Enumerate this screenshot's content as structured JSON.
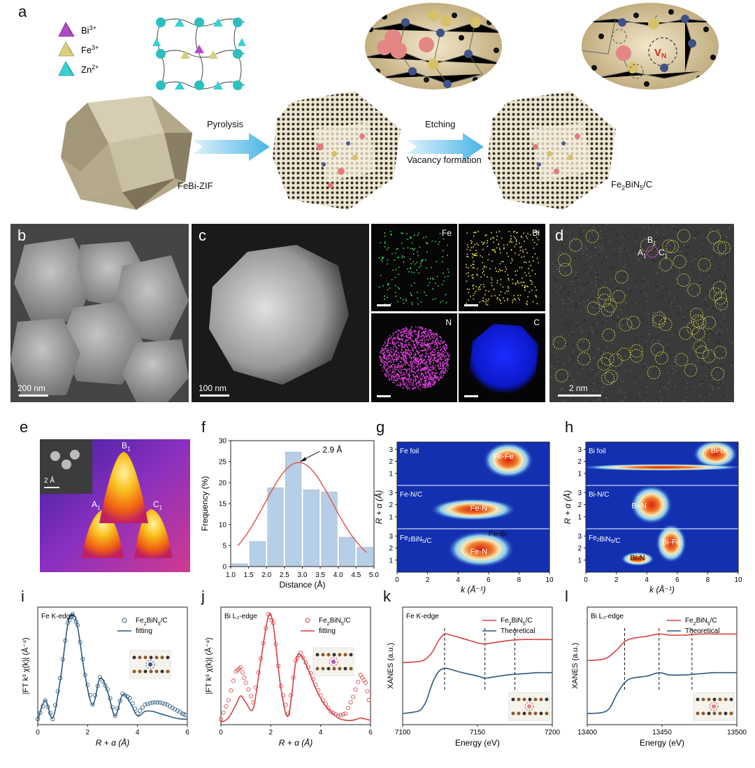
{
  "panel_labels": [
    "a",
    "b",
    "c",
    "d",
    "e",
    "f",
    "g",
    "h",
    "i",
    "j",
    "k",
    "l"
  ],
  "panel_a": {
    "legend": [
      {
        "ion": "Bi",
        "charge": "3+",
        "color": "#b24bc8"
      },
      {
        "ion": "Fe",
        "charge": "3+",
        "color": "#cfc573"
      },
      {
        "ion": "Zn",
        "charge": "2+",
        "color": "#2ec6c8"
      }
    ],
    "step1": "Pyrolysis",
    "step2": "Etching",
    "step2_sub": "Vacancy formation",
    "label_precursor": "FeBi-ZIF",
    "label_product_base": "Fe",
    "label_product_sub1": "2",
    "label_product_mid": "BiN",
    "label_product_sub2": "5",
    "label_product_end": "/C",
    "vacancy_main": "V",
    "vacancy_sub": "N"
  },
  "panel_b": {
    "scale": "200 nm"
  },
  "panel_c": {
    "scale": "100 nm",
    "maps": [
      "Fe",
      "Bi",
      "N",
      "C"
    ]
  },
  "panel_d": {
    "scale": "2 nm",
    "site_B": "B",
    "site_A": "A",
    "site_C": "C",
    "site_sub": "1"
  },
  "panel_e": {
    "inset_scale": "2 Å",
    "peak_B": "B",
    "peak_A": "A",
    "peak_C": "C",
    "peak_sub": "1"
  },
  "colors": {
    "fe_line": "#2b5a7e",
    "bi_line": "#d94040",
    "bar": "#b7cfe6",
    "bar_edge": "#8fb0d0",
    "gauss": "#e06060"
  },
  "chart_data": [
    {
      "id": "f",
      "type": "bar",
      "xlabel": "Distance (Å)",
      "ylabel": "Frequency (%)",
      "xlim": [
        1.0,
        5.0
      ],
      "ylim": [
        0,
        30
      ],
      "xticks": [
        "1.0",
        "1.5",
        "2.0",
        "2.5",
        "3.0",
        "3.5",
        "4.0",
        "4.5",
        "5.0"
      ],
      "yticks": [
        "0",
        "5",
        "10",
        "15",
        "20",
        "25",
        "30"
      ],
      "bin_centers": [
        1.25,
        1.75,
        2.25,
        2.75,
        3.25,
        3.75,
        4.25,
        4.75
      ],
      "values": [
        0.7,
        6.0,
        18.8,
        27.3,
        18.3,
        17.8,
        7.0,
        4.6
      ],
      "fit_center": 2.9,
      "fit_peak": 24.8,
      "fit_sigma": 0.95,
      "annotation": "2.9 Å"
    },
    {
      "id": "g",
      "type": "heatmap",
      "xlabel": "k (Å⁻¹)",
      "ylabel": "R + α (Å)",
      "xticks": [
        "0",
        "2",
        "4",
        "6",
        "8",
        "10"
      ],
      "yticks": [
        "1",
        "2",
        "3"
      ],
      "rows": [
        {
          "name": "Fe foil",
          "labels": [
            "Fe-Fe"
          ]
        },
        {
          "name": "Fe-N/C",
          "labels": [
            "Fe-N"
          ]
        },
        {
          "name_base": "Fe",
          "name_sub1": "2",
          "name_mid": "BiN",
          "name_sub2": "5",
          "name_end": "/C",
          "labels": [
            "Fe-N",
            "Fe-Bi"
          ]
        }
      ]
    },
    {
      "id": "h",
      "type": "heatmap",
      "xlabel": "k (Å⁻¹)",
      "ylabel": "R + α (Å)",
      "xticks": [
        "0",
        "2",
        "4",
        "6",
        "8",
        "10"
      ],
      "yticks": [
        "1",
        "2",
        "3"
      ],
      "rows": [
        {
          "name": "Bi foil",
          "labels": [
            "Bi-Bi"
          ]
        },
        {
          "name": "Bi-N/C",
          "labels": [
            "Bi-N"
          ]
        },
        {
          "name_base": "Fe",
          "name_sub1": "2",
          "name_mid": "BiN",
          "name_sub2": "5",
          "name_end": "/C",
          "labels": [
            "Bi-Fe",
            "Bi-N"
          ]
        }
      ]
    },
    {
      "id": "i",
      "type": "line",
      "edge": "Fe K-edge",
      "xlabel": "R + α (Å)",
      "ylabel": "|FT k³ χ(k)| (Å⁻⁴)",
      "xlim": [
        0,
        6
      ],
      "xticks": [
        "0",
        "2",
        "4",
        "6"
      ],
      "series": [
        {
          "name": "Fe2BiN5/C",
          "style": "markers",
          "x": [
            0.0,
            0.3,
            0.6,
            0.9,
            1.2,
            1.4,
            1.6,
            1.9,
            2.2,
            2.5,
            2.8,
            3.1,
            3.4,
            3.7,
            4.0,
            4.3,
            4.6,
            4.9,
            5.2,
            5.5,
            5.8,
            6.0
          ],
          "y": [
            0.05,
            0.22,
            0.05,
            0.42,
            0.92,
            1.0,
            0.9,
            0.45,
            0.18,
            0.43,
            0.32,
            0.08,
            0.28,
            0.24,
            0.1,
            0.18,
            0.2,
            0.2,
            0.18,
            0.14,
            0.1,
            0.08
          ]
        },
        {
          "name": "fitting",
          "style": "line",
          "x": [
            0.0,
            0.3,
            0.6,
            0.9,
            1.2,
            1.4,
            1.6,
            1.9,
            2.2,
            2.5,
            2.8,
            3.1,
            3.4,
            3.7,
            4.0,
            4.3,
            4.6,
            4.9,
            5.2,
            5.5,
            5.8,
            6.0
          ],
          "y": [
            0.04,
            0.22,
            0.06,
            0.4,
            0.9,
            1.0,
            0.88,
            0.44,
            0.18,
            0.42,
            0.3,
            0.08,
            0.27,
            0.2,
            0.08,
            0.12,
            0.12,
            0.1,
            0.08,
            0.06,
            0.05,
            0.05
          ]
        }
      ]
    },
    {
      "id": "j",
      "type": "line",
      "edge": "Bi L₃-edge",
      "xlabel": "R + α (Å)",
      "ylabel": "|FT k³ χ(k)| (Å⁻⁴)",
      "xlim": [
        0,
        6
      ],
      "xticks": [
        "0",
        "2",
        "4",
        "6"
      ],
      "series": [
        {
          "name": "Fe2BiN5/C",
          "style": "markers",
          "x": [
            0.0,
            0.3,
            0.6,
            0.8,
            1.0,
            1.3,
            1.6,
            1.9,
            2.1,
            2.4,
            2.7,
            3.0,
            3.2,
            3.5,
            3.8,
            4.1,
            4.4,
            4.7,
            5.0,
            5.3,
            5.6,
            5.8,
            6.0
          ],
          "y": [
            0.05,
            0.22,
            0.48,
            0.52,
            0.38,
            0.2,
            0.6,
            1.0,
            0.92,
            0.35,
            0.1,
            0.58,
            0.65,
            0.52,
            0.36,
            0.22,
            0.12,
            0.08,
            0.1,
            0.25,
            0.45,
            0.38,
            0.15
          ]
        },
        {
          "name": "fitting",
          "style": "line",
          "x": [
            0.0,
            0.3,
            0.6,
            0.8,
            1.0,
            1.3,
            1.6,
            1.9,
            2.1,
            2.4,
            2.7,
            3.0,
            3.2,
            3.5,
            3.8,
            4.1,
            4.4,
            4.7,
            5.0,
            5.3,
            5.6,
            5.8,
            6.0
          ],
          "y": [
            0.02,
            0.06,
            0.18,
            0.26,
            0.2,
            0.15,
            0.58,
            0.98,
            0.9,
            0.34,
            0.08,
            0.56,
            0.63,
            0.5,
            0.33,
            0.2,
            0.12,
            0.06,
            0.04,
            0.04,
            0.06,
            0.05,
            0.04
          ]
        }
      ]
    },
    {
      "id": "k",
      "type": "line",
      "edge": "Fe K-edge",
      "xlabel": "Energy (eV)",
      "ylabel": "XANES (a.u.)",
      "xlim": [
        7100,
        7200
      ],
      "xticks": [
        "7100",
        "7150",
        "7200"
      ],
      "guides": [
        7128,
        7155,
        7175
      ],
      "series": [
        {
          "name": "Fe2BiN5/C",
          "x": [
            7100,
            7110,
            7115,
            7120,
            7124,
            7128,
            7132,
            7140,
            7150,
            7155,
            7160,
            7170,
            7180,
            7190,
            7200
          ],
          "y": [
            0.56,
            0.57,
            0.59,
            0.66,
            0.76,
            0.82,
            0.81,
            0.78,
            0.74,
            0.73,
            0.74,
            0.76,
            0.77,
            0.77,
            0.77
          ]
        },
        {
          "name": "Theoretical",
          "x": [
            7100,
            7110,
            7113,
            7116,
            7120,
            7124,
            7128,
            7132,
            7140,
            7150,
            7155,
            7160,
            7170,
            7180,
            7190,
            7200
          ],
          "y": [
            0.1,
            0.12,
            0.15,
            0.22,
            0.38,
            0.48,
            0.51,
            0.5,
            0.47,
            0.44,
            0.42,
            0.43,
            0.45,
            0.46,
            0.47,
            0.47
          ]
        }
      ]
    },
    {
      "id": "l",
      "type": "line",
      "edge": "Bi L₃-edge",
      "xlabel": "Energy (eV)",
      "ylabel": "XANES (a.u.)",
      "xlim": [
        13400,
        13500
      ],
      "xticks": [
        "13400",
        "13450",
        "13500"
      ],
      "guides": [
        13425,
        13448,
        13470
      ],
      "series": [
        {
          "name": "Fe2BiN5/C",
          "x": [
            13400,
            13410,
            13415,
            13420,
            13425,
            13430,
            13440,
            13448,
            13455,
            13465,
            13475,
            13485,
            13500
          ],
          "y": [
            0.58,
            0.59,
            0.62,
            0.68,
            0.75,
            0.78,
            0.8,
            0.82,
            0.81,
            0.81,
            0.82,
            0.82,
            0.82
          ]
        },
        {
          "name": "Theoretical",
          "x": [
            13400,
            13410,
            13415,
            13420,
            13425,
            13430,
            13440,
            13448,
            13455,
            13465,
            13475,
            13485,
            13500
          ],
          "y": [
            0.1,
            0.11,
            0.15,
            0.28,
            0.38,
            0.42,
            0.44,
            0.47,
            0.45,
            0.45,
            0.46,
            0.47,
            0.47
          ]
        }
      ]
    }
  ]
}
